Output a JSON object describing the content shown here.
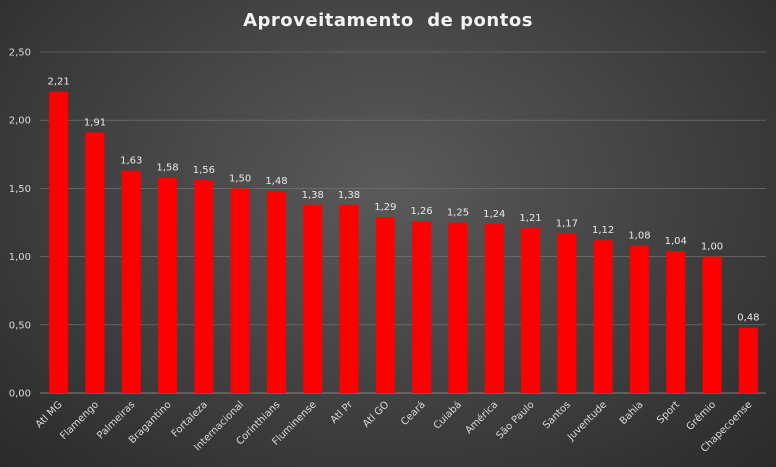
{
  "chart_data": {
    "type": "bar",
    "title": "Aproveitamento  de pontos",
    "categories": [
      "Atl MG",
      "Flamengo",
      "Palmeiras",
      "Bragantino",
      "Fortaleza",
      "Internacional",
      "Corinthians",
      "Fluminense",
      "Atl Pr",
      "Atl GO",
      "Ceará",
      "Cuiabá",
      "América",
      "São Paulo",
      "Santos",
      "Juventude",
      "Bahia",
      "Sport",
      "Grêmio",
      "Chapecoense"
    ],
    "values": [
      2.21,
      1.91,
      1.63,
      1.58,
      1.56,
      1.5,
      1.48,
      1.38,
      1.38,
      1.29,
      1.26,
      1.25,
      1.24,
      1.21,
      1.17,
      1.12,
      1.08,
      1.04,
      1.0,
      0.48
    ],
    "value_labels": [
      "2,21",
      "1,91",
      "1,63",
      "1,58",
      "1,56",
      "1,50",
      "1,48",
      "1,38",
      "1,38",
      "1,29",
      "1,26",
      "1,25",
      "1,24",
      "1,21",
      "1,17",
      "1,12",
      "1,08",
      "1,04",
      "1,00",
      "0,48"
    ],
    "ylim": [
      0,
      2.5
    ],
    "yticks": [
      0,
      0.5,
      1.0,
      1.5,
      2.0,
      2.5
    ],
    "ytick_labels": [
      "0,00",
      "0,50",
      "1,00",
      "1,50",
      "2,00",
      "2,50"
    ],
    "grid": true,
    "bar_color": "#ff0000",
    "background_color": "#454545"
  }
}
